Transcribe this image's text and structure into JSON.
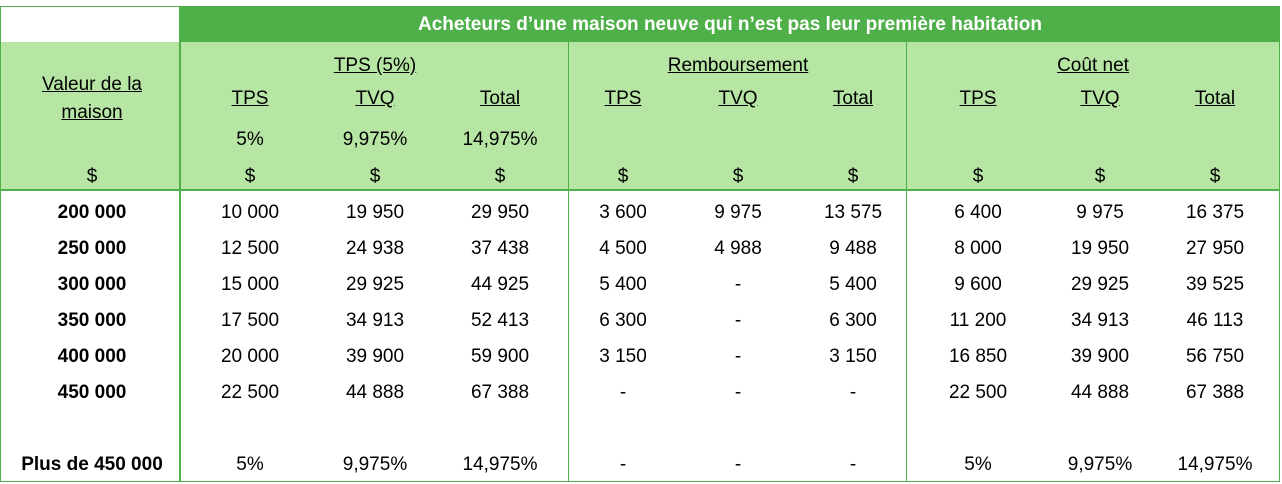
{
  "header": {
    "title": "Acheteurs d’une maison neuve qui n’est pas leur première habitation",
    "first_col": "Valeur de la maison",
    "groups": [
      "TPS (5%)",
      "Remboursement",
      "Coût net"
    ],
    "subcolumns": [
      "TPS",
      "TVQ",
      "Total",
      "TPS",
      "TVQ",
      "Total",
      "TPS",
      "TVQ",
      "Total"
    ],
    "rates": [
      "5%",
      "9,975%",
      "14,975%"
    ],
    "currency": [
      "$",
      "$",
      "$",
      "$",
      "$",
      "$",
      "$",
      "$",
      "$",
      "$"
    ]
  },
  "rows": [
    [
      "200 000",
      "10 000",
      "19 950",
      "29 950",
      "3 600",
      "9 975",
      "13 575",
      "6 400",
      "9 975",
      "16 375"
    ],
    [
      "250 000",
      "12 500",
      "24 938",
      "37 438",
      "4 500",
      "4 988",
      "9 488",
      "8 000",
      "19 950",
      "27 950"
    ],
    [
      "300 000",
      "15 000",
      "29 925",
      "44 925",
      "5 400",
      "-",
      "5 400",
      "9 600",
      "29 925",
      "39 525"
    ],
    [
      "350 000",
      "17 500",
      "34 913",
      "52 413",
      "6 300",
      "-",
      "6 300",
      "11 200",
      "34 913",
      "46 113"
    ],
    [
      "400 000",
      "20 000",
      "39 900",
      "59 900",
      "3 150",
      "-",
      "3 150",
      "16 850",
      "39 900",
      "56 750"
    ],
    [
      "450 000",
      "22 500",
      "44 888",
      "67 388",
      "-",
      "-",
      "-",
      "22 500",
      "44 888",
      "67 388"
    ],
    [
      "Plus de 450 000",
      "5%",
      "9,975%",
      "14,975%",
      "-",
      "-",
      "-",
      "5%",
      "9,975%",
      "14,975%"
    ]
  ]
}
